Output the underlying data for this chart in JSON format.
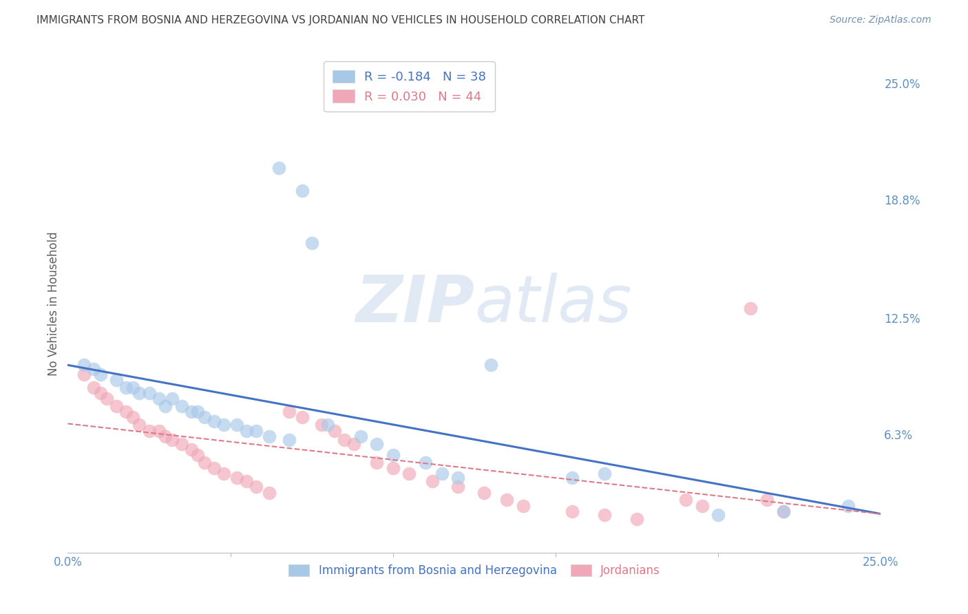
{
  "title": "IMMIGRANTS FROM BOSNIA AND HERZEGOVINA VS JORDANIAN NO VEHICLES IN HOUSEHOLD CORRELATION CHART",
  "source": "Source: ZipAtlas.com",
  "ylabel": "No Vehicles in Household",
  "ytick_labels": [
    "25.0%",
    "18.8%",
    "12.5%",
    "6.3%"
  ],
  "ytick_values": [
    0.25,
    0.188,
    0.125,
    0.063
  ],
  "xlim": [
    0.0,
    0.25
  ],
  "ylim": [
    0.0,
    0.265
  ],
  "watermark_zip": "ZIP",
  "watermark_atlas": "atlas",
  "legend_blue_r": "-0.184",
  "legend_blue_n": "38",
  "legend_pink_r": "0.030",
  "legend_pink_n": "44",
  "legend_label_blue": "Immigrants from Bosnia and Herzegovina",
  "legend_label_pink": "Jordanians",
  "blue_scatter_x": [
    0.065,
    0.072,
    0.075,
    0.13,
    0.005,
    0.008,
    0.01,
    0.015,
    0.018,
    0.02,
    0.022,
    0.025,
    0.028,
    0.03,
    0.032,
    0.035,
    0.038,
    0.04,
    0.042,
    0.045,
    0.048,
    0.052,
    0.055,
    0.058,
    0.062,
    0.068,
    0.08,
    0.09,
    0.095,
    0.1,
    0.11,
    0.115,
    0.155,
    0.165,
    0.2,
    0.22,
    0.24,
    0.12
  ],
  "blue_scatter_y": [
    0.205,
    0.193,
    0.165,
    0.1,
    0.1,
    0.098,
    0.095,
    0.092,
    0.088,
    0.088,
    0.085,
    0.085,
    0.082,
    0.078,
    0.082,
    0.078,
    0.075,
    0.075,
    0.072,
    0.07,
    0.068,
    0.068,
    0.065,
    0.065,
    0.062,
    0.06,
    0.068,
    0.062,
    0.058,
    0.052,
    0.048,
    0.042,
    0.04,
    0.042,
    0.02,
    0.022,
    0.025,
    0.04
  ],
  "pink_scatter_x": [
    0.005,
    0.008,
    0.01,
    0.012,
    0.015,
    0.018,
    0.02,
    0.022,
    0.025,
    0.028,
    0.03,
    0.032,
    0.035,
    0.038,
    0.04,
    0.042,
    0.045,
    0.048,
    0.052,
    0.055,
    0.058,
    0.062,
    0.068,
    0.072,
    0.078,
    0.082,
    0.085,
    0.088,
    0.095,
    0.1,
    0.105,
    0.112,
    0.12,
    0.128,
    0.135,
    0.14,
    0.155,
    0.165,
    0.175,
    0.19,
    0.195,
    0.21,
    0.215,
    0.22
  ],
  "pink_scatter_y": [
    0.095,
    0.088,
    0.085,
    0.082,
    0.078,
    0.075,
    0.072,
    0.068,
    0.065,
    0.065,
    0.062,
    0.06,
    0.058,
    0.055,
    0.052,
    0.048,
    0.045,
    0.042,
    0.04,
    0.038,
    0.035,
    0.032,
    0.075,
    0.072,
    0.068,
    0.065,
    0.06,
    0.058,
    0.048,
    0.045,
    0.042,
    0.038,
    0.035,
    0.032,
    0.028,
    0.025,
    0.022,
    0.02,
    0.018,
    0.028,
    0.025,
    0.13,
    0.028,
    0.022
  ],
  "blue_color": "#a8c8e8",
  "pink_color": "#f0a8b8",
  "blue_line_color": "#4472c4",
  "pink_line_color": "#e07888",
  "bg_color": "#ffffff",
  "grid_color": "#c8d8ec",
  "title_color": "#404040",
  "source_color": "#7090b0",
  "tick_label_color": "#6090c0",
  "ylabel_color": "#606060"
}
